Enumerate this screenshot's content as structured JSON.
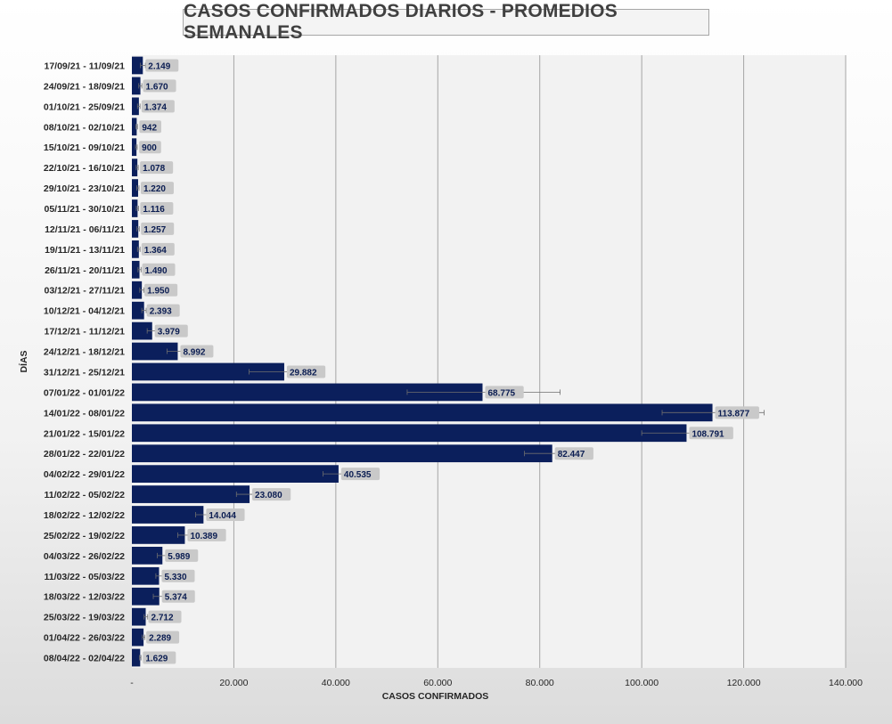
{
  "colors": {
    "bar": "#0b1f5c",
    "label_bg": "#c9c9c9",
    "plot_bg": "#f2f2f2",
    "grid": "#a6a6a6"
  },
  "chart_data": {
    "type": "bar",
    "orientation": "horizontal",
    "title": "CASOS CONFIRMADOS DIARIOS - PROMEDIOS SEMANALES",
    "xlabel": "CASOS CONFIRMADOS",
    "ylabel": "DÍAS",
    "xlim": [
      0,
      140000
    ],
    "x_ticks": [
      0,
      20000,
      40000,
      60000,
      80000,
      100000,
      120000,
      140000
    ],
    "x_tick_labels": [
      "-",
      "20.000",
      "40.000",
      "60.000",
      "80.000",
      "100.000",
      "120.000",
      "140.000"
    ],
    "grid": "vertical",
    "categories": [
      "17/09/21 - 11/09/21",
      "24/09/21 - 18/09/21",
      "01/10/21 - 25/09/21",
      "08/10/21 - 02/10/21",
      "15/10/21 - 09/10/21",
      "22/10/21 - 16/10/21",
      "29/10/21 - 23/10/21",
      "05/11/21 - 30/10/21",
      "12/11/21 - 06/11/21",
      "19/11/21 - 13/11/21",
      "26/11/21 - 20/11/21",
      "03/12/21 - 27/11/21",
      "10/12/21 - 04/12/21",
      "17/12/21 - 11/12/21",
      "24/12/21 - 18/12/21",
      "31/12/21 - 25/12/21",
      "07/01/22 - 01/01/22",
      "14/01/22 - 08/01/22",
      "21/01/22 - 15/01/22",
      "28/01/22 - 22/01/22",
      "04/02/22 - 29/01/22",
      "11/02/22 - 05/02/22",
      "18/02/22 - 12/02/22",
      "25/02/22 - 19/02/22",
      "04/03/22 - 26/02/22",
      "11/03/22 - 05/03/22",
      "18/03/22 - 12/03/22",
      "25/03/22 - 19/03/22",
      "01/04/22 - 26/03/22",
      "08/04/22 - 02/04/22"
    ],
    "values": [
      2149,
      1670,
      1374,
      942,
      900,
      1078,
      1220,
      1116,
      1257,
      1364,
      1490,
      1950,
      2393,
      3979,
      8992,
      29882,
      68775,
      113877,
      108791,
      82447,
      40535,
      23080,
      14044,
      10389,
      5989,
      5330,
      5374,
      2712,
      2289,
      1629
    ],
    "labels": [
      "2.149",
      "1.670",
      "1.374",
      "942",
      "900",
      "1.078",
      "1.220",
      "1.116",
      "1.257",
      "1.364",
      "1.490",
      "1.950",
      "2.393",
      "3.979",
      "8.992",
      "29.882",
      "68.775",
      "113.877",
      "108.791",
      "82.447",
      "40.535",
      "23.080",
      "14.044",
      "10.389",
      "5.989",
      "5.330",
      "5.374",
      "2.712",
      "2.289",
      "1.629"
    ],
    "error_low": [
      1700,
      1350,
      1100,
      760,
      700,
      850,
      950,
      870,
      1000,
      1100,
      1200,
      1550,
      1950,
      3000,
      6900,
      23000,
      54000,
      104000,
      100000,
      77000,
      37500,
      20500,
      12500,
      9000,
      5000,
      4700,
      4200,
      2400,
      2050,
      1500
    ],
    "error_high": [
      2650,
      1950,
      1600,
      1100,
      1050,
      1250,
      1400,
      1300,
      1450,
      1600,
      1800,
      2350,
      2800,
      4900,
      10600,
      33000,
      84000,
      124000,
      117500,
      85500,
      42500,
      25500,
      15800,
      11500,
      6700,
      6200,
      6300,
      3100,
      2550,
      1780
    ]
  }
}
